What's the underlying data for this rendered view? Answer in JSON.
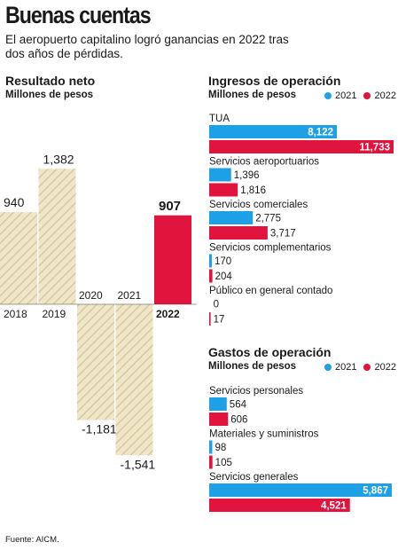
{
  "header": {
    "title": "Buenas cuentas",
    "subtitle": "El aeropuerto capitalino logró ganancias en 2022 tras dos años de pérdidas."
  },
  "source": "Fuente: AICM.",
  "colors": {
    "net_hatch": "#e8dcb8",
    "net_hatch_line": "#d2c08e",
    "red": "#e0143c",
    "blue": "#1ea0e6"
  },
  "chart_data": [
    {
      "type": "bar",
      "title": "Resultado neto",
      "subtitle": "Millones de pesos",
      "categories": [
        "2018",
        "2019",
        "2020",
        "2021",
        "2022"
      ],
      "values": [
        940,
        1382,
        -1181,
        -1541,
        907
      ],
      "value_labels": [
        "940",
        "1,382",
        "-1,181",
        "-1,541",
        "907"
      ],
      "highlight": "2022"
    },
    {
      "type": "bar",
      "orientation": "horizontal",
      "title": "Ingresos de operación",
      "subtitle": "Millones de pesos",
      "legend": [
        "2021",
        "2022"
      ],
      "categories": [
        "TUA",
        "Servicios aeroportuarios",
        "Servicios comerciales",
        "Servicios complementarios",
        "Público en general contado"
      ],
      "series": [
        {
          "name": "2021",
          "values": [
            8122,
            1396,
            2775,
            170,
            0
          ],
          "labels": [
            "8,122",
            "1,396",
            "2,775",
            "170",
            "0"
          ]
        },
        {
          "name": "2022",
          "values": [
            11733,
            1816,
            3717,
            204,
            17
          ],
          "labels": [
            "11,733",
            "1,816",
            "3,717",
            "204",
            "17"
          ]
        }
      ]
    },
    {
      "type": "bar",
      "orientation": "horizontal",
      "title": "Gastos de operación",
      "subtitle": "Millones de pesos",
      "legend": [
        "2021",
        "2022"
      ],
      "categories": [
        "Servicios personales",
        "Materiales y suministros",
        "Servicios generales"
      ],
      "series": [
        {
          "name": "2021",
          "values": [
            564,
            98,
            5867
          ],
          "labels": [
            "564",
            "98",
            "5,867"
          ]
        },
        {
          "name": "2022",
          "values": [
            606,
            105,
            4521
          ],
          "labels": [
            "606",
            "105",
            "4,521"
          ]
        }
      ]
    }
  ]
}
